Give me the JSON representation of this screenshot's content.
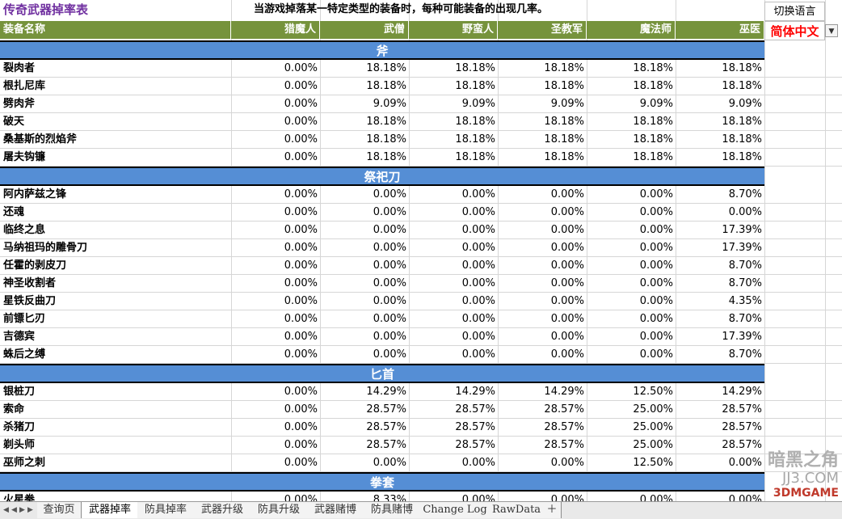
{
  "sheet": {
    "title": "传奇武器掉率表",
    "subtitle": "当游戏掉落某一特定类型的装备时，每种可能装备的出现几率。",
    "switch_language_label": "切换语言",
    "language_value": "简体中文",
    "columns": [
      "装备名称",
      "猎魔人",
      "武僧",
      "野蛮人",
      "圣教军",
      "魔法师",
      "巫医"
    ],
    "groups": [
      {
        "name": "斧",
        "rows": [
          {
            "name": "裂肉者",
            "values": [
              "0.00%",
              "18.18%",
              "18.18%",
              "18.18%",
              "18.18%",
              "18.18%"
            ]
          },
          {
            "name": "根扎尼库",
            "values": [
              "0.00%",
              "18.18%",
              "18.18%",
              "18.18%",
              "18.18%",
              "18.18%"
            ]
          },
          {
            "name": "劈肉斧",
            "values": [
              "0.00%",
              "9.09%",
              "9.09%",
              "9.09%",
              "9.09%",
              "9.09%"
            ]
          },
          {
            "name": "破天",
            "values": [
              "0.00%",
              "18.18%",
              "18.18%",
              "18.18%",
              "18.18%",
              "18.18%"
            ]
          },
          {
            "name": "桑基斯的烈焰斧",
            "values": [
              "0.00%",
              "18.18%",
              "18.18%",
              "18.18%",
              "18.18%",
              "18.18%"
            ]
          },
          {
            "name": "屠夫钩镰",
            "values": [
              "0.00%",
              "18.18%",
              "18.18%",
              "18.18%",
              "18.18%",
              "18.18%"
            ]
          }
        ]
      },
      {
        "name": "祭祀刀",
        "rows": [
          {
            "name": "阿内萨兹之锋",
            "values": [
              "0.00%",
              "0.00%",
              "0.00%",
              "0.00%",
              "0.00%",
              "8.70%"
            ]
          },
          {
            "name": "还魂",
            "values": [
              "0.00%",
              "0.00%",
              "0.00%",
              "0.00%",
              "0.00%",
              "0.00%"
            ]
          },
          {
            "name": "临终之息",
            "values": [
              "0.00%",
              "0.00%",
              "0.00%",
              "0.00%",
              "0.00%",
              "17.39%"
            ]
          },
          {
            "name": "马纳祖玛的雕骨刀",
            "values": [
              "0.00%",
              "0.00%",
              "0.00%",
              "0.00%",
              "0.00%",
              "17.39%"
            ]
          },
          {
            "name": "任霍的剥皮刀",
            "values": [
              "0.00%",
              "0.00%",
              "0.00%",
              "0.00%",
              "0.00%",
              "8.70%"
            ]
          },
          {
            "name": "神圣收割者",
            "values": [
              "0.00%",
              "0.00%",
              "0.00%",
              "0.00%",
              "0.00%",
              "8.70%"
            ]
          },
          {
            "name": "星铁反曲刀",
            "values": [
              "0.00%",
              "0.00%",
              "0.00%",
              "0.00%",
              "0.00%",
              "4.35%"
            ]
          },
          {
            "name": "前镖匕刃",
            "values": [
              "0.00%",
              "0.00%",
              "0.00%",
              "0.00%",
              "0.00%",
              "8.70%"
            ]
          },
          {
            "name": "吉德宾",
            "values": [
              "0.00%",
              "0.00%",
              "0.00%",
              "0.00%",
              "0.00%",
              "17.39%"
            ]
          },
          {
            "name": "蛛后之缚",
            "values": [
              "0.00%",
              "0.00%",
              "0.00%",
              "0.00%",
              "0.00%",
              "8.70%"
            ]
          }
        ]
      },
      {
        "name": "匕首",
        "rows": [
          {
            "name": "银桩刀",
            "values": [
              "0.00%",
              "14.29%",
              "14.29%",
              "14.29%",
              "12.50%",
              "14.29%"
            ]
          },
          {
            "name": "索命",
            "values": [
              "0.00%",
              "28.57%",
              "28.57%",
              "28.57%",
              "25.00%",
              "28.57%"
            ]
          },
          {
            "name": "杀猪刀",
            "values": [
              "0.00%",
              "28.57%",
              "28.57%",
              "28.57%",
              "25.00%",
              "28.57%"
            ]
          },
          {
            "name": "剃头师",
            "values": [
              "0.00%",
              "28.57%",
              "28.57%",
              "28.57%",
              "25.00%",
              "28.57%"
            ]
          },
          {
            "name": "巫师之刺",
            "values": [
              "0.00%",
              "0.00%",
              "0.00%",
              "0.00%",
              "12.50%",
              "0.00%"
            ]
          }
        ]
      },
      {
        "name": "拳套",
        "rows": [
          {
            "name": "火星拳",
            "values": [
              "0.00%",
              "8.33%",
              "0.00%",
              "0.00%",
              "0.00%",
              "0.00%"
            ]
          }
        ]
      }
    ]
  },
  "tabs": [
    "查询页",
    "武器掉率",
    "防具掉率",
    "武器升级",
    "防具升级",
    "武器赌博",
    "防具赌博",
    "Change Log",
    "RawData"
  ],
  "active_tab": "武器掉率",
  "watermark": {
    "line1": "暗黑之角",
    "line2": "JJ3.COM",
    "line3": "3DMGAME"
  }
}
